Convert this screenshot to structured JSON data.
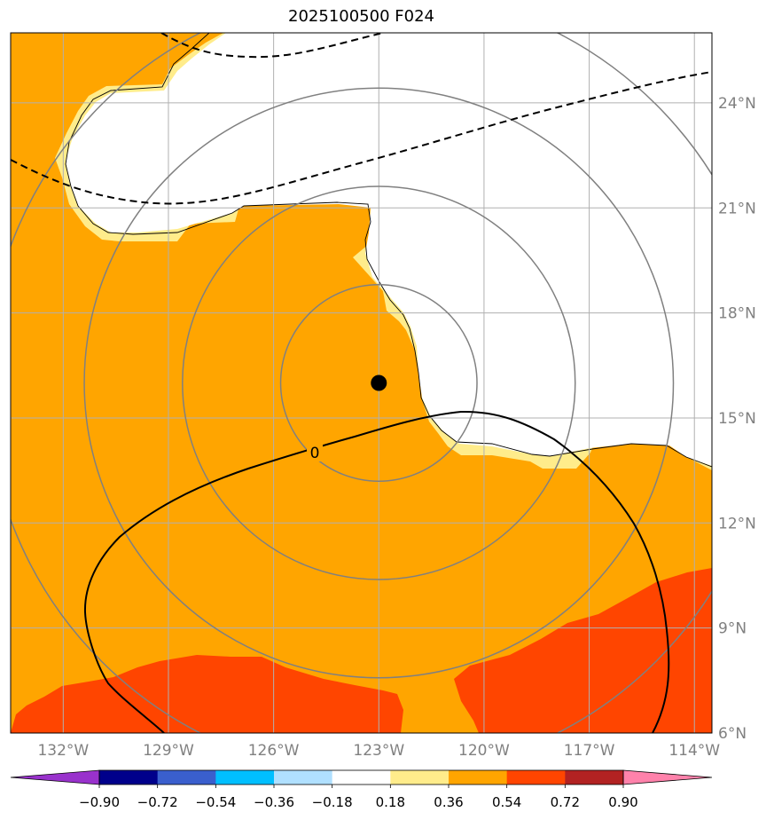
{
  "title": "2025100500 F024",
  "map": {
    "lon_range": [
      -133.5,
      -113.5
    ],
    "lat_range": [
      6,
      26
    ],
    "lon_ticks": [
      -132,
      -129,
      -126,
      -123,
      -120,
      -117,
      -114
    ],
    "lon_labels": [
      "132°W",
      "129°W",
      "126°W",
      "123°W",
      "120°W",
      "117°W",
      "114°W"
    ],
    "lat_ticks": [
      6,
      9,
      12,
      15,
      18,
      21,
      24
    ],
    "lat_labels": [
      "6°N",
      "9°N",
      "12°N",
      "15°N",
      "18°N",
      "21°N",
      "24°N"
    ],
    "storm_center": {
      "lon": -123.0,
      "lat": 16.0
    },
    "range_rings_deg": [
      2.8,
      5.6,
      8.4,
      11.2
    ],
    "zero_contour_label": "0",
    "grid": true
  },
  "colorbar": {
    "boundaries": [
      -0.9,
      -0.72,
      -0.54,
      -0.36,
      -0.18,
      0.18,
      0.36,
      0.54,
      0.72,
      0.9
    ],
    "labels": [
      "−0.90",
      "−0.72",
      "−0.54",
      "−0.36",
      "−0.18",
      "0.18",
      "0.36",
      "0.54",
      "0.72",
      "0.90"
    ],
    "colors": [
      "#9932cc",
      "#00008b",
      "#3a5fcd",
      "#00bfff",
      "#b0e0ff",
      "#ffffff",
      "#ffec8b",
      "#ffa500",
      "#ff4500",
      "#b22222",
      "#ff82ab"
    ],
    "extend": "both"
  }
}
